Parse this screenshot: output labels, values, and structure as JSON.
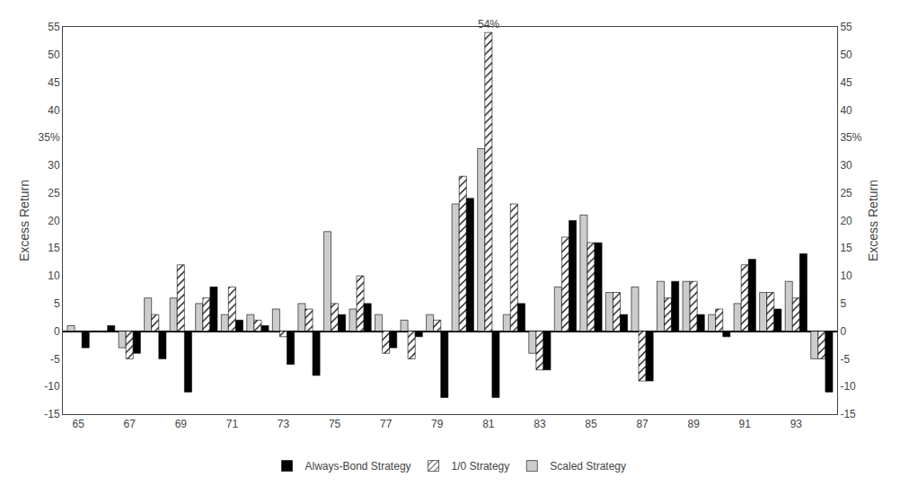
{
  "chart_data": {
    "type": "bar",
    "categories": [
      "65",
      null,
      "67",
      null,
      "69",
      null,
      "71",
      null,
      "73",
      null,
      "75",
      null,
      "77",
      null,
      "79",
      null,
      "81",
      null,
      "83",
      null,
      "85",
      null,
      "87",
      null,
      "89",
      null,
      "91",
      null,
      "93",
      null
    ],
    "series": [
      {
        "name": "Scaled Strategy",
        "color": "#cccccc",
        "values": [
          1,
          0,
          -3,
          6,
          6,
          5,
          3,
          3,
          4,
          5,
          18,
          4,
          3,
          2,
          3,
          23,
          33,
          3,
          -4,
          8,
          21,
          7,
          8,
          9,
          9,
          3,
          5,
          7,
          9,
          -5
        ]
      },
      {
        "name": "1/0 Strategy",
        "color": "#ffffff",
        "marker": "hatch",
        "values": [
          0,
          0,
          -5,
          3,
          12,
          6,
          8,
          2,
          -1,
          4,
          5,
          10,
          -4,
          -5,
          2,
          28,
          54,
          23,
          -7,
          17,
          16,
          7,
          -9,
          6,
          9,
          4,
          12,
          7,
          6,
          -5
        ]
      },
      {
        "name": "Always-Bond Strategy",
        "color": "#000000",
        "values": [
          -3,
          1,
          -4,
          -5,
          -11,
          8,
          2,
          1,
          -6,
          -8,
          3,
          5,
          -3,
          -1,
          -12,
          24,
          -12,
          5,
          -7,
          20,
          16,
          3,
          -9,
          9,
          3,
          -1,
          13,
          4,
          14,
          -11
        ]
      }
    ],
    "ylabel": "Excess Return",
    "ylim": [
      -15,
      55
    ],
    "yticks": [
      -15,
      -10,
      -5,
      0,
      5,
      10,
      15,
      20,
      25,
      30,
      {
        "value": 35,
        "label": "35%"
      },
      40,
      45,
      50,
      55
    ],
    "y2lim": [
      -15,
      55
    ],
    "y2ticks": [
      -15,
      -10,
      -5,
      0,
      5,
      10,
      15,
      20,
      25,
      30,
      {
        "value": 35,
        "label": "35%"
      },
      40,
      45,
      50,
      55
    ],
    "annotations": [
      {
        "text": "54%",
        "x": "81",
        "y": 54
      }
    ],
    "legend": "bottom",
    "grid": false
  }
}
